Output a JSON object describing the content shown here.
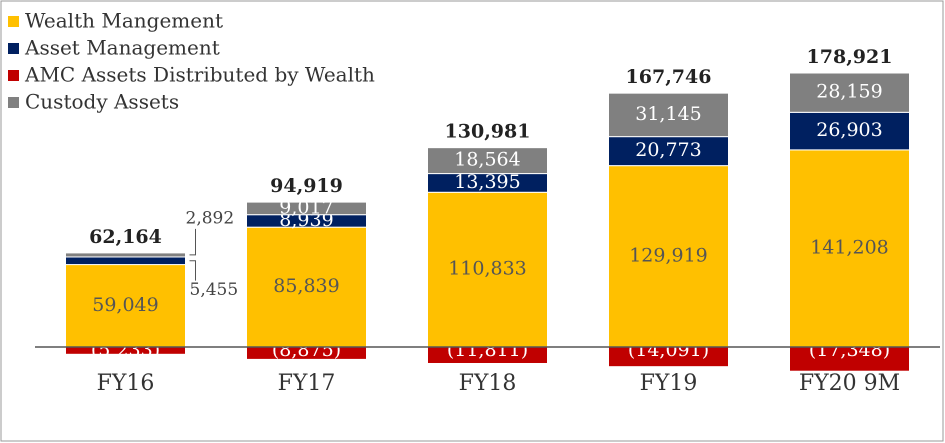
{
  "chart_data": {
    "type": "stacked_bar",
    "categories": [
      "FY16",
      "FY17",
      "FY18",
      "FY19",
      "FY20 9M"
    ],
    "series": [
      {
        "name": "Wealth Mangement",
        "color": "#ffc000",
        "values": [
          59049,
          85839,
          110833,
          129919,
          141208
        ],
        "value_labels": [
          "59,049",
          "85,839",
          "110,833",
          "129,919",
          "141,208"
        ]
      },
      {
        "name": "Asset Management",
        "color": "#002060",
        "values": [
          5455,
          8939,
          13395,
          20773,
          26903
        ],
        "value_labels": [
          "5,455",
          "8,939",
          "13,395",
          "20,773",
          "26,903"
        ]
      },
      {
        "name": "AMC Assets Distributed by Wealth",
        "color": "#c00000",
        "values": [
          -5233,
          -8875,
          -11811,
          -14091,
          -17348
        ],
        "value_labels": [
          "(5,233)",
          "(8,875)",
          "(11,811)",
          "(14,091)",
          "(17,348)"
        ]
      },
      {
        "name": "Custody Assets",
        "color": "#808080",
        "values": [
          2892,
          9017,
          18564,
          31145,
          28159
        ],
        "value_labels": [
          "2,892",
          "9,017",
          "18,564",
          "31,145",
          "28,159"
        ]
      }
    ],
    "totals": [
      62164,
      94919,
      130981,
      167746,
      178921
    ],
    "total_labels": [
      "62,164",
      "94,919",
      "130,981",
      "167,746",
      "178,921"
    ],
    "legend": "top-left"
  }
}
